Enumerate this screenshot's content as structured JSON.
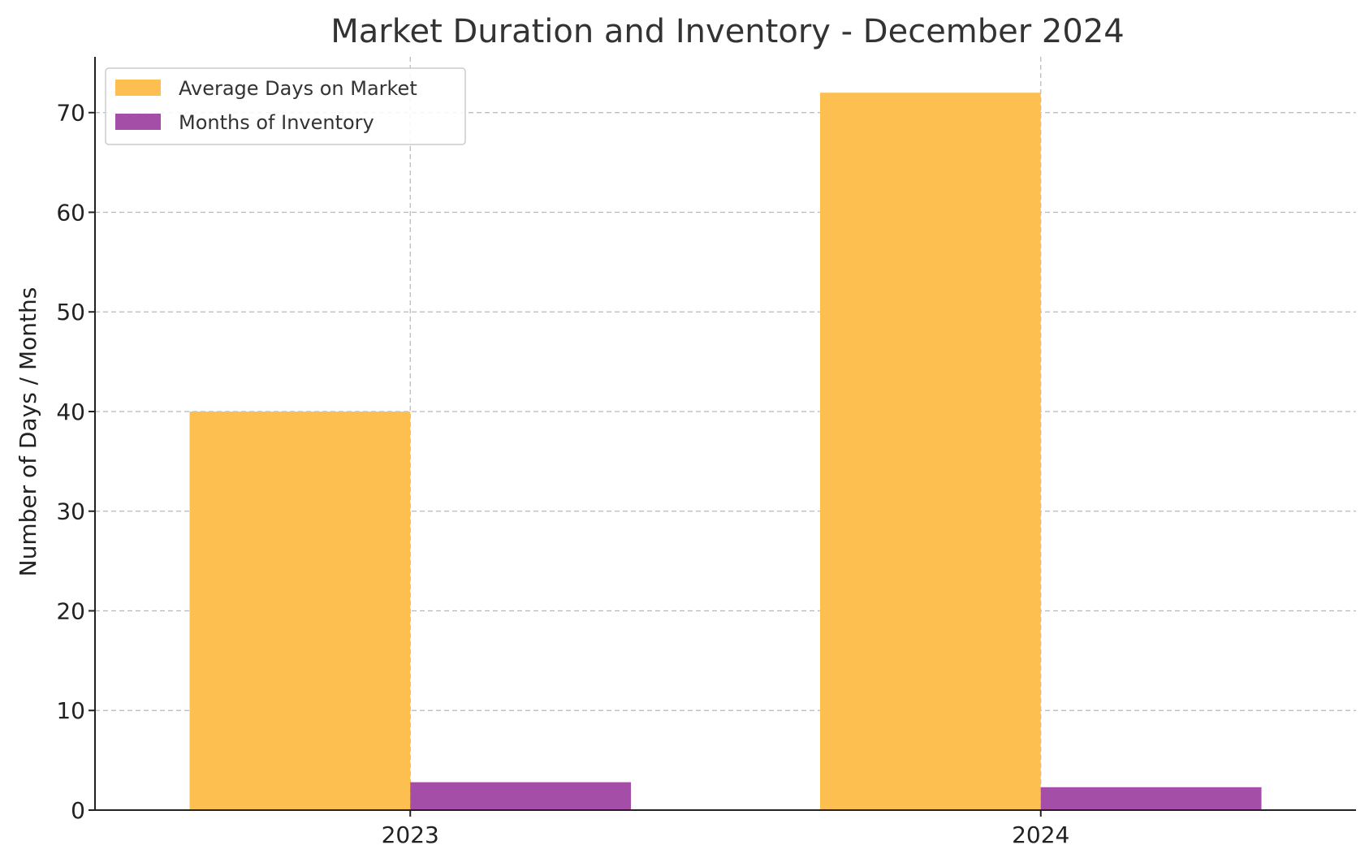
{
  "chart_data": {
    "type": "bar",
    "title": "Market Duration and Inventory - December 2024",
    "xlabel": "",
    "ylabel": "Number of Days / Months",
    "categories": [
      "2023",
      "2024"
    ],
    "series": [
      {
        "name": "Average Days on Market",
        "values": [
          40,
          72
        ],
        "color": "#FDBF50"
      },
      {
        "name": "Months of Inventory",
        "values": [
          2.8,
          2.3
        ],
        "color": "#A54EA7"
      }
    ],
    "ylim": [
      0,
      75.6
    ],
    "yticks": [
      0,
      10,
      20,
      30,
      40,
      50,
      60,
      70
    ],
    "grid": true,
    "legend_position": "top-left"
  }
}
